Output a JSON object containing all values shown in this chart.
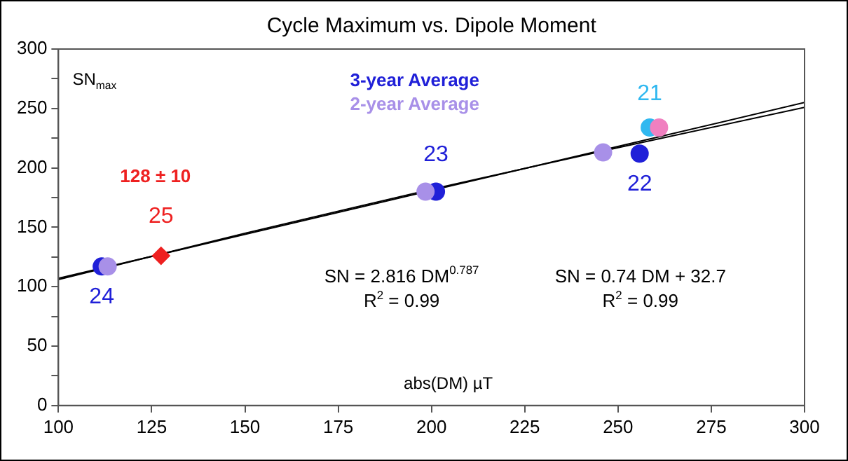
{
  "chart_data": {
    "type": "scatter",
    "title": "Cycle Maximum vs. Dipole Moment",
    "xlabel": "abs(DM) µT",
    "ylabel": "SN$_{max}$",
    "xlim": [
      100,
      300
    ],
    "xticks": [
      100,
      125,
      150,
      175,
      200,
      225,
      250,
      275,
      300
    ],
    "ylim": [
      0,
      300
    ],
    "yticks": [
      0,
      {
        "value": 25,
        "label": null
      },
      50,
      {
        "value": 75,
        "label": null
      },
      100,
      {
        "value": 125,
        "label": null
      },
      150,
      {
        "value": 175,
        "label": null
      },
      200,
      {
        "value": 225,
        "label": null
      },
      250,
      {
        "value": 275,
        "label": null
      },
      300
    ],
    "grid": false,
    "legend": "top",
    "marker": "circle",
    "series": [
      {
        "name": "3-year Average",
        "type": "scatter",
        "color": "#2020d8",
        "colors": [
          "#2020d8",
          "#2020d8",
          "#2020d8",
          "#30b8f0"
        ],
        "x": [
          111.6,
          201.2,
          255.8,
          258.5
        ],
        "values": [
          117,
          180,
          212,
          234
        ]
      },
      {
        "type": "scatter",
        "marker": "diamond",
        "color": "#ee2020",
        "x": [
          127.5
        ],
        "values": [
          126
        ]
      },
      {
        "name": "2-year Average",
        "type": "scatter",
        "color": "#a890e8",
        "colors": [
          "#a890e8",
          "#a890e8",
          "#a890e8",
          "#f080c0"
        ],
        "x": [
          113.2,
          198.4,
          246,
          261
        ],
        "values": [
          117,
          180,
          213,
          234
        ]
      },
      {
        "type": "line",
        "color": "#000000",
        "marker": "none",
        "x": [
          100,
          150,
          200,
          250,
          300
        ],
        "values": [
          106,
          145,
          182,
          217,
          251
        ]
      },
      {
        "type": "line",
        "color": "#000000",
        "marker": "none",
        "x": [
          100,
          150,
          200,
          250,
          300
        ],
        "values": [
          107,
          144,
          181,
          218,
          255
        ]
      }
    ],
    "annotations": [
      {
        "text": "24",
        "x": 111.6,
        "y": 117
      },
      {
        "text": "25",
        "x": 127.5,
        "y": 126
      },
      "128 ± 10",
      {
        "text": "23",
        "x": 201.2,
        "y": 180
      },
      {
        "text": "22",
        "x": 255.8,
        "y": 212
      },
      {
        "text": "21",
        "x": 258.5,
        "y": 234
      },
      "SN = 2.816 DM$^{0.787}$",
      "R$^{2}$ = 0.99",
      "SN = 0.74 DM + 32.7",
      "R$^{2}$ = 0.99"
    ]
  }
}
